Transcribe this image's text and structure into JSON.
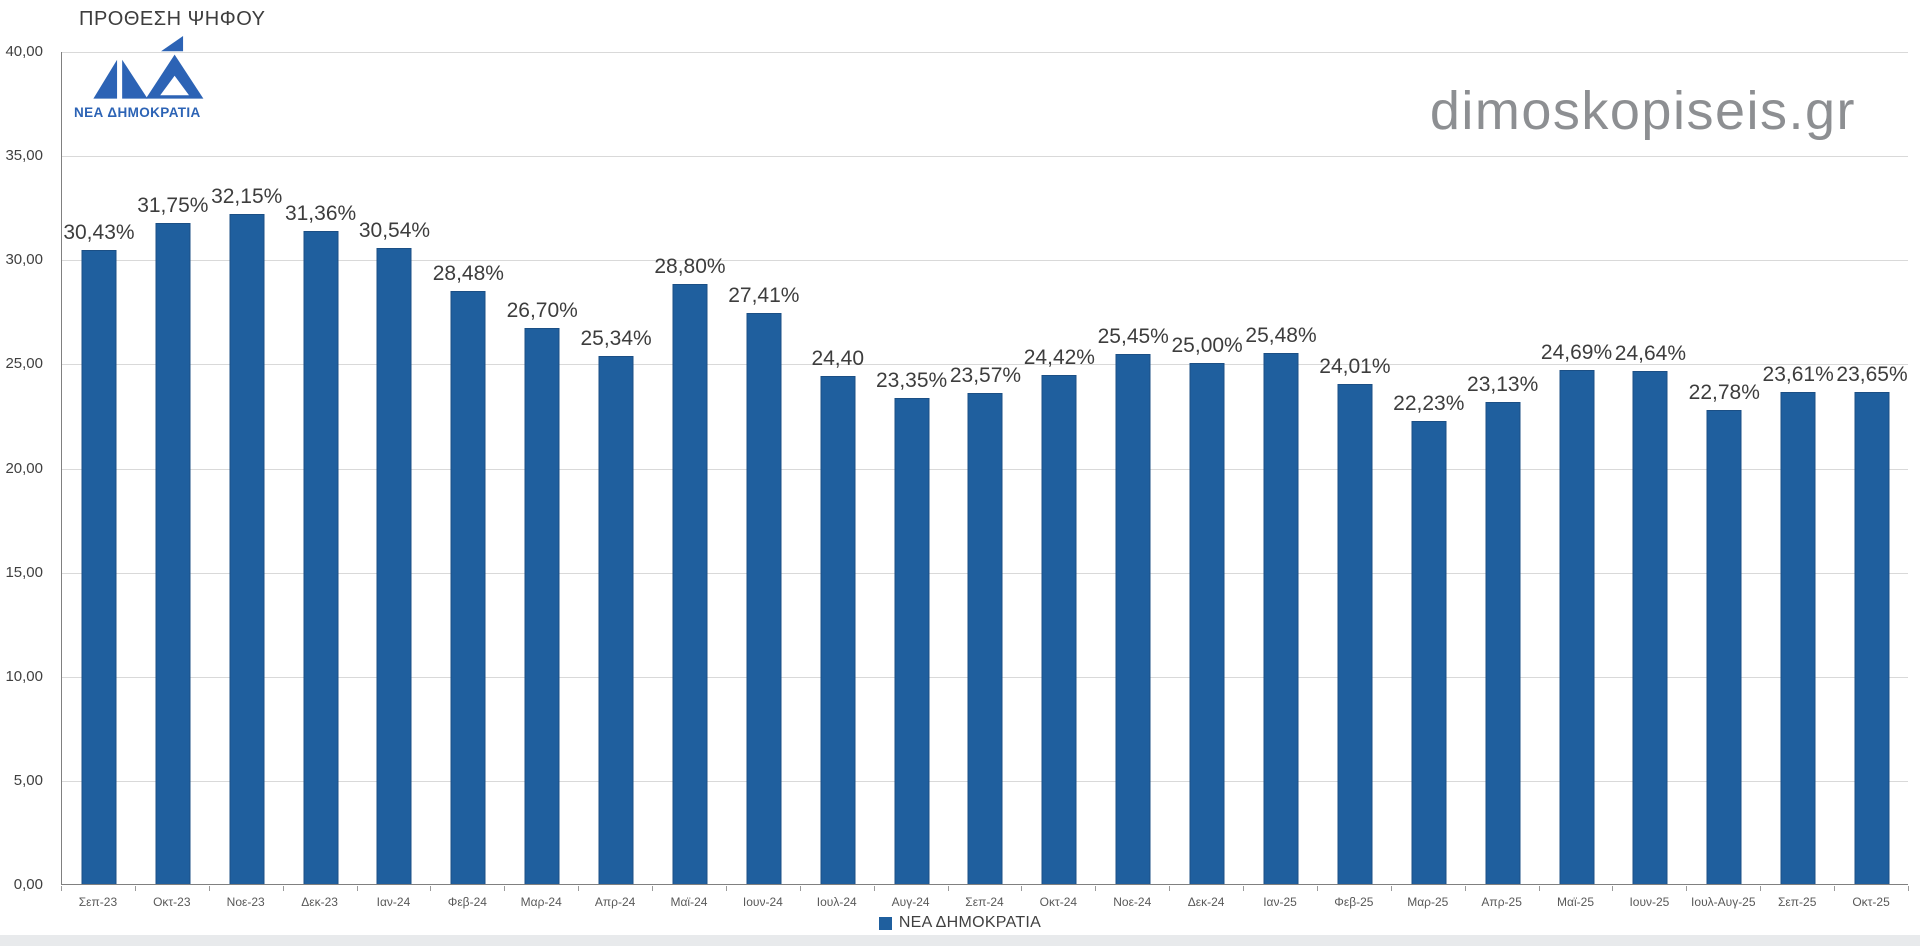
{
  "title": "ΠΡΟΘΕΣΗ ΨΗΦΟΥ",
  "watermark": "dimoskopiseis.gr",
  "logo": {
    "label": "ΝΕΑ ΔΗΜΟΚΡΑΤΙΑ",
    "color": "#2C63B5"
  },
  "legend": {
    "label": "ΝΕΑ ΔΗΜΟΚΡΑΤΙΑ"
  },
  "colors": {
    "bar": "#1F5F9E",
    "bar_border": "#1B4F85",
    "gridline": "#D9D9D9",
    "axis": "#808080",
    "watermark": "#8D8F92"
  },
  "chart_data": {
    "type": "bar",
    "title": "ΠΡΟΘΕΣΗ ΨΗΦΟΥ",
    "series_name": "ΝΕΑ ΔΗΜΟΚΡΑΤΙΑ",
    "categories": [
      "Σεπ-23",
      "Οκτ-23",
      "Νοε-23",
      "Δεκ-23",
      "Ιαν-24",
      "Φεβ-24",
      "Μαρ-24",
      "Απρ-24",
      "Μαϊ-24",
      "Ιουν-24",
      "Ιουλ-24",
      "Αυγ-24",
      "Σεπ-24",
      "Οκτ-24",
      "Νοε-24",
      "Δεκ-24",
      "Ιαν-25",
      "Φεβ-25",
      "Μαρ-25",
      "Απρ-25",
      "Μαϊ-25",
      "Ιουν-25",
      "Ιουλ-Αυγ-25",
      "Σεπ-25",
      "Οκτ-25"
    ],
    "values": [
      30.43,
      31.75,
      32.15,
      31.36,
      30.54,
      28.48,
      26.7,
      25.34,
      28.8,
      27.41,
      24.4,
      23.35,
      23.57,
      24.42,
      25.45,
      25.0,
      25.48,
      24.01,
      22.23,
      23.13,
      24.69,
      24.64,
      22.78,
      23.61,
      23.65
    ],
    "data_labels": [
      "30,43%",
      "31,75%",
      "32,15%",
      "31,36%",
      "30,54%",
      "28,48%",
      "26,70%",
      "25,34%",
      "28,80%",
      "27,41%",
      "24,40",
      "23,35%",
      "23,57%",
      "24,42%",
      "25,45%",
      "25,00%",
      "25,48%",
      "24,01%",
      "22,23%",
      "23,13%",
      "24,69%",
      "24,64%",
      "22,78%",
      "23,61%",
      "23,65%"
    ],
    "xlabel": "",
    "ylabel": "",
    "ylim": [
      0,
      40
    ],
    "ytick_step": 5,
    "ytick_labels": [
      "0,00",
      "5,00",
      "10,00",
      "15,00",
      "20,00",
      "25,00",
      "30,00",
      "35,00",
      "40,00"
    ],
    "grid": true,
    "legend_position": "bottom"
  }
}
